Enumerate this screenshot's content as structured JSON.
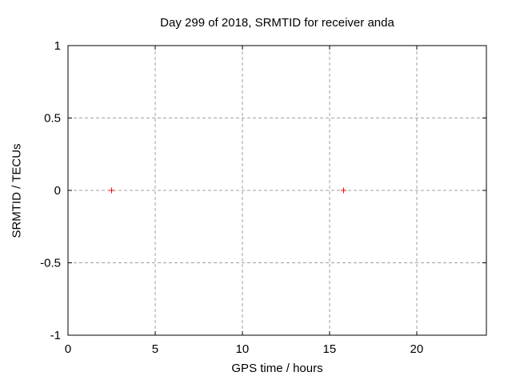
{
  "colors": {
    "background": "#ffffff",
    "text": "#000000",
    "border": "#000000",
    "grid": "#a0a0a0",
    "marker": "#ff0000"
  },
  "chart_data": {
    "type": "scatter",
    "title": "Day 299 of 2018, SRMTID for receiver anda",
    "xlabel": "GPS time / hours",
    "ylabel": "SRMTID / TECUs",
    "xlim": [
      0,
      24
    ],
    "ylim": [
      -1,
      1
    ],
    "xticks": [
      0,
      5,
      10,
      15,
      20
    ],
    "xtick_labels": [
      "0",
      "5",
      "10",
      "15",
      "20"
    ],
    "yticks": [
      -1,
      -0.5,
      0,
      0.5,
      1
    ],
    "ytick_labels": [
      "-1",
      "-0.5",
      "0",
      "0.5",
      "1"
    ],
    "grid": true,
    "grid_style": "dashed",
    "legend": "none",
    "series": [
      {
        "name": "SRMTID",
        "marker": "plus",
        "color": "#ff0000",
        "points": [
          {
            "x": 2.5,
            "y": 0.0
          },
          {
            "x": 15.8,
            "y": 0.0
          }
        ]
      }
    ]
  }
}
